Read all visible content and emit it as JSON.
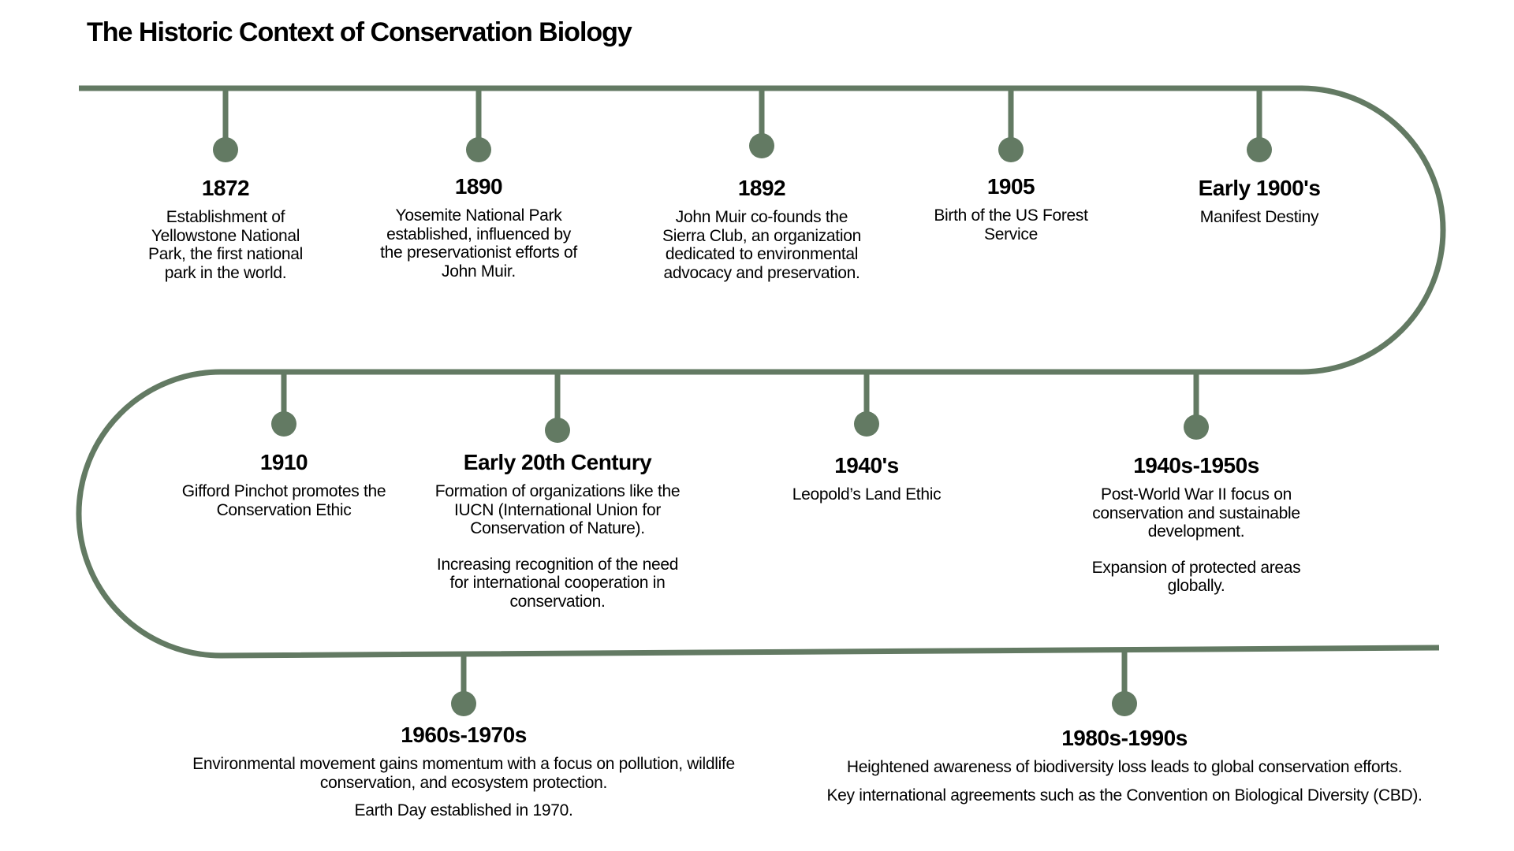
{
  "title": "The Historic Context of Conservation Biology",
  "colors": {
    "line": "#637a63",
    "text": "#000000",
    "background": "#ffffff"
  },
  "events": [
    {
      "date": "1872",
      "paragraphs": [
        "Establishment of Yellowstone National Park, the first national park in the world."
      ]
    },
    {
      "date": "1890",
      "paragraphs": [
        "Yosemite National Park established, influenced by the preservationist efforts of John Muir."
      ]
    },
    {
      "date": "1892",
      "paragraphs": [
        "John Muir co-founds the Sierra Club, an organization dedicated to environmental advocacy and preservation."
      ]
    },
    {
      "date": "1905",
      "paragraphs": [
        "Birth of the US Forest Service"
      ]
    },
    {
      "date": "Early 1900's",
      "paragraphs": [
        "Manifest Destiny"
      ]
    },
    {
      "date": "1910",
      "paragraphs": [
        "Gifford Pinchot promotes the Conservation Ethic"
      ]
    },
    {
      "date": "Early 20th Century",
      "paragraphs": [
        "Formation of organizations like the IUCN (International Union for Conservation of Nature).",
        "Increasing recognition of the need for international cooperation in conservation."
      ]
    },
    {
      "date": "1940's",
      "paragraphs": [
        "Leopold’s Land Ethic"
      ]
    },
    {
      "date": "1940s-1950s",
      "paragraphs": [
        "Post-World War II focus on conservation and sustainable development.",
        "Expansion of protected areas globally."
      ]
    },
    {
      "date": "1960s-1970s",
      "paragraphs": [
        "Environmental movement gains momentum with a focus on pollution, wildlife conservation, and ecosystem protection.",
        "Earth Day established in 1970."
      ]
    },
    {
      "date": "1980s-1990s",
      "paragraphs": [
        "Heightened awareness of biodiversity loss leads to global conservation efforts.",
        "Key international agreements such as the Convention on Biological Diversity (CBD)."
      ]
    }
  ]
}
